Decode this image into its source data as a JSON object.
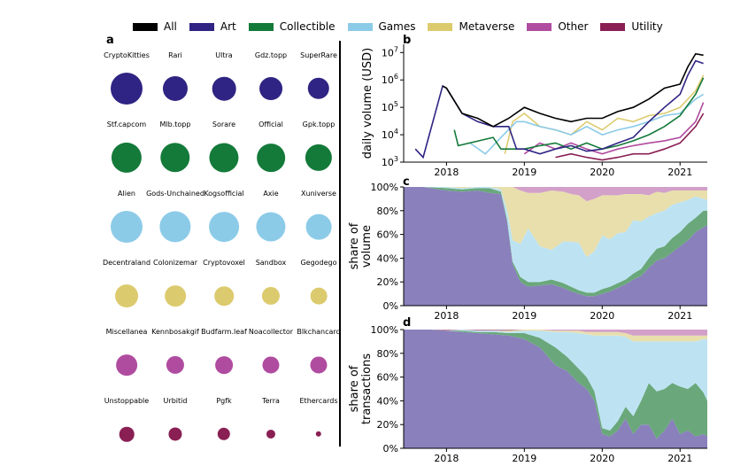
{
  "legend": [
    {
      "label": "All",
      "color": "#000000"
    },
    {
      "label": "Art",
      "color": "#2f2483"
    },
    {
      "label": "Collectible",
      "color": "#147a3a"
    },
    {
      "label": "Games",
      "color": "#8ccbe8"
    },
    {
      "label": "Metaverse",
      "color": "#dccb6e"
    },
    {
      "label": "Other",
      "color": "#b04ca0"
    },
    {
      "label": "Utility",
      "color": "#8a1f54"
    }
  ],
  "panels": {
    "a": "a",
    "b": "b",
    "c": "c",
    "d": "d"
  },
  "panel_a": {
    "rows": [
      {
        "category": "Art",
        "color": "#2f2483",
        "items": [
          {
            "name": "CryptoKitties",
            "size": 1.0
          },
          {
            "name": "Rari",
            "size": 0.78
          },
          {
            "name": "Ultra",
            "size": 0.74
          },
          {
            "name": "Gdz.topp",
            "size": 0.72
          },
          {
            "name": "SuperRare",
            "size": 0.68
          }
        ]
      },
      {
        "category": "Collectible",
        "color": "#147a3a",
        "items": [
          {
            "name": "Stf.capcom",
            "size": 0.95
          },
          {
            "name": "Mlb.topp",
            "size": 0.93
          },
          {
            "name": "Sorare",
            "size": 0.92
          },
          {
            "name": "Official",
            "size": 0.88
          },
          {
            "name": "Gpk.topp",
            "size": 0.84
          }
        ]
      },
      {
        "category": "Games",
        "color": "#8ccbe8",
        "items": [
          {
            "name": "Alien",
            "size": 1.0
          },
          {
            "name": "Gods-Unchained",
            "size": 0.98
          },
          {
            "name": "Kogsofficial",
            "size": 0.94
          },
          {
            "name": "Axie",
            "size": 0.92
          },
          {
            "name": "Xuniverse",
            "size": 0.8
          }
        ]
      },
      {
        "category": "Metaverse",
        "color": "#dccb6e",
        "items": [
          {
            "name": "Decentraland",
            "size": 0.72
          },
          {
            "name": "Colonizemar",
            "size": 0.66
          },
          {
            "name": "Cryptovoxel",
            "size": 0.6
          },
          {
            "name": "Sandbox",
            "size": 0.56
          },
          {
            "name": "Gegodego",
            "size": 0.52
          }
        ]
      },
      {
        "category": "Other",
        "color": "#b04ca0",
        "items": [
          {
            "name": "Miscellanea",
            "size": 0.66
          },
          {
            "name": "Kennbosakgif",
            "size": 0.56
          },
          {
            "name": "Budfarm.leaf",
            "size": 0.55
          },
          {
            "name": "Noacollector",
            "size": 0.53
          },
          {
            "name": "Blkchancard",
            "size": 0.53
          }
        ]
      },
      {
        "category": "Utility",
        "color": "#8a1f54",
        "items": [
          {
            "name": "Unstoppable",
            "size": 0.46
          },
          {
            "name": "Urbitid",
            "size": 0.42
          },
          {
            "name": "Pgfk",
            "size": 0.4
          },
          {
            "name": "Terra",
            "size": 0.28
          },
          {
            "name": "Ethercards",
            "size": 0.18
          }
        ]
      }
    ]
  },
  "chart_data": [
    {
      "panel": "b",
      "type": "line",
      "ylabel": "daily volume (USD)",
      "yscale": "log",
      "ylim": [
        1000,
        20000000
      ],
      "yticks": [
        "10^3",
        "10^4",
        "10^5",
        "10^6",
        "10^7"
      ],
      "xlim": [
        2017.45,
        2021.35
      ],
      "xticks": [
        "2018",
        "2019",
        "2020",
        "2021"
      ],
      "series": [
        {
          "name": "All",
          "color": "#000000",
          "x": [
            2017.95,
            2018.0,
            2018.2,
            2018.4,
            2018.6,
            2018.8,
            2019.0,
            2019.2,
            2019.4,
            2019.6,
            2019.8,
            2020.0,
            2020.2,
            2020.4,
            2020.6,
            2020.8,
            2021.0,
            2021.1,
            2021.2,
            2021.3
          ],
          "y": [
            600000,
            500000,
            60000,
            40000,
            20000,
            40000,
            100000,
            60000,
            40000,
            30000,
            40000,
            40000,
            70000,
            100000,
            200000,
            500000,
            700000,
            3000000,
            9000000,
            8000000
          ]
        },
        {
          "name": "Art",
          "color": "#2f2483",
          "x": [
            2017.6,
            2017.7,
            2017.95,
            2018.0,
            2018.2,
            2018.4,
            2018.6,
            2018.8,
            2018.9,
            2019.0,
            2019.2,
            2019.4,
            2019.6,
            2019.8,
            2020.0,
            2020.2,
            2020.4,
            2020.6,
            2020.8,
            2021.0,
            2021.1,
            2021.2,
            2021.3
          ],
          "y": [
            3000,
            1500,
            600000,
            500000,
            60000,
            30000,
            20000,
            20000,
            3000,
            3000,
            2000,
            3000,
            4000,
            2500,
            3000,
            5000,
            8000,
            30000,
            100000,
            300000,
            1500000,
            5000000,
            4000000
          ]
        },
        {
          "name": "Collectible",
          "color": "#147a3a",
          "x": [
            2018.1,
            2018.15,
            2018.6,
            2018.7,
            2019.0,
            2019.2,
            2019.4,
            2019.6,
            2019.8,
            2020.0,
            2020.2,
            2020.4,
            2020.6,
            2020.8,
            2021.0,
            2021.2,
            2021.3
          ],
          "y": [
            15000,
            4000,
            8000,
            3000,
            3000,
            4000,
            5000,
            3000,
            5000,
            3000,
            4000,
            6000,
            10000,
            20000,
            50000,
            300000,
            1200000
          ]
        },
        {
          "name": "Games",
          "color": "#8ccbe8",
          "x": [
            2018.3,
            2018.5,
            2018.7,
            2018.9,
            2019.0,
            2019.2,
            2019.4,
            2019.6,
            2019.8,
            2020.0,
            2020.2,
            2020.4,
            2020.6,
            2020.8,
            2021.0,
            2021.2,
            2021.3
          ],
          "y": [
            5000,
            2000,
            8000,
            30000,
            30000,
            20000,
            15000,
            10000,
            20000,
            10000,
            15000,
            20000,
            30000,
            50000,
            60000,
            200000,
            300000
          ]
        },
        {
          "name": "Metaverse",
          "color": "#dccb6e",
          "x": [
            2018.75,
            2018.85,
            2019.0,
            2019.2,
            2019.4,
            2019.6,
            2019.8,
            2020.0,
            2020.2,
            2020.4,
            2020.6,
            2020.8,
            2021.0,
            2021.2,
            2021.3
          ],
          "y": [
            2000,
            30000,
            60000,
            20000,
            15000,
            10000,
            30000,
            15000,
            40000,
            30000,
            50000,
            60000,
            100000,
            400000,
            1500000
          ]
        },
        {
          "name": "Other",
          "color": "#b04ca0",
          "x": [
            2019.0,
            2019.2,
            2019.4,
            2019.6,
            2019.8,
            2020.0,
            2020.2,
            2020.4,
            2020.6,
            2020.8,
            2021.0,
            2021.2,
            2021.3
          ],
          "y": [
            2000,
            5000,
            3000,
            5000,
            3000,
            2000,
            3000,
            4000,
            5000,
            6000,
            8000,
            30000,
            150000
          ]
        },
        {
          "name": "Utility",
          "color": "#8a1f54",
          "x": [
            2019.4,
            2019.6,
            2019.8,
            2020.0,
            2020.2,
            2020.4,
            2020.6,
            2020.8,
            2021.0,
            2021.2,
            2021.3
          ],
          "y": [
            1500,
            2000,
            1500,
            1200,
            1500,
            2000,
            2000,
            3000,
            5000,
            20000,
            60000
          ]
        }
      ]
    },
    {
      "panel": "c",
      "type": "area",
      "stacked": true,
      "ylabel": "share of volume",
      "yticks": [
        "0%",
        "20%",
        "40%",
        "60%",
        "80%",
        "100%"
      ],
      "xlim": [
        2017.45,
        2021.35
      ],
      "xticks": [
        "2018",
        "2019",
        "2020",
        "2021"
      ],
      "x": [
        2017.45,
        2017.7,
        2018.0,
        2018.2,
        2018.4,
        2018.55,
        2018.7,
        2018.78,
        2018.85,
        2018.95,
        2019.05,
        2019.2,
        2019.35,
        2019.5,
        2019.6,
        2019.7,
        2019.8,
        2019.9,
        2020.0,
        2020.1,
        2020.2,
        2020.3,
        2020.4,
        2020.5,
        2020.6,
        2020.7,
        2020.8,
        2020.9,
        2021.0,
        2021.1,
        2021.2,
        2021.3,
        2021.35
      ],
      "series": [
        {
          "name": "Art",
          "color": "#8a80bc",
          "values": [
            100,
            100,
            97,
            96,
            97,
            95,
            94,
            70,
            35,
            20,
            16,
            17,
            18,
            15,
            12,
            10,
            8,
            8,
            10,
            12,
            15,
            18,
            22,
            25,
            32,
            38,
            40,
            45,
            50,
            55,
            62,
            66,
            68
          ]
        },
        {
          "name": "Collectible",
          "color": "#6aa87b",
          "values": [
            0,
            0,
            2,
            2,
            2,
            4,
            2,
            2,
            2,
            4,
            4,
            3,
            4,
            4,
            4,
            3,
            3,
            3,
            4,
            4,
            4,
            4,
            5,
            6,
            8,
            10,
            10,
            12,
            12,
            14,
            12,
            14,
            12
          ]
        },
        {
          "name": "Games",
          "color": "#bde3f3",
          "values": [
            0,
            0,
            1,
            1,
            1,
            1,
            2,
            8,
            18,
            28,
            45,
            30,
            25,
            35,
            38,
            40,
            30,
            35,
            45,
            40,
            42,
            40,
            45,
            40,
            35,
            30,
            30,
            28,
            25,
            20,
            18,
            10,
            9
          ]
        },
        {
          "name": "Metaverse",
          "color": "#e8dfad",
          "values": [
            0,
            0,
            0,
            1,
            0,
            0,
            2,
            20,
            45,
            45,
            30,
            45,
            50,
            42,
            40,
            40,
            47,
            44,
            34,
            37,
            32,
            32,
            22,
            23,
            18,
            18,
            15,
            12,
            10,
            8,
            5,
            7,
            8
          ]
        },
        {
          "name": "Other",
          "color": "#d2a0c8",
          "values": [
            0,
            0,
            0,
            0,
            0,
            0,
            0,
            0,
            0,
            3,
            5,
            5,
            3,
            4,
            6,
            7,
            12,
            10,
            7,
            7,
            7,
            6,
            6,
            6,
            7,
            4,
            5,
            3,
            3,
            3,
            3,
            3,
            3
          ]
        }
      ]
    },
    {
      "panel": "d",
      "type": "area",
      "stacked": true,
      "ylabel": "share of transactions",
      "yticks": [
        "0%",
        "20%",
        "40%",
        "60%",
        "80%",
        "100%"
      ],
      "xlim": [
        2017.45,
        2021.35
      ],
      "xticks": [
        "2018",
        "2019",
        "2020",
        "2021"
      ],
      "x": [
        2017.45,
        2017.8,
        2018.0,
        2018.2,
        2018.4,
        2018.6,
        2018.8,
        2019.0,
        2019.2,
        2019.4,
        2019.55,
        2019.7,
        2019.8,
        2019.9,
        2020.0,
        2020.1,
        2020.2,
        2020.3,
        2020.4,
        2020.5,
        2020.6,
        2020.7,
        2020.8,
        2020.9,
        2021.0,
        2021.1,
        2021.2,
        2021.3,
        2021.35
      ],
      "series": [
        {
          "name": "Art",
          "color": "#8a80bc",
          "values": [
            100,
            100,
            99,
            98,
            97,
            96,
            95,
            92,
            85,
            70,
            65,
            55,
            50,
            40,
            12,
            10,
            15,
            25,
            12,
            20,
            20,
            8,
            15,
            25,
            12,
            15,
            10,
            12,
            10
          ]
        },
        {
          "name": "Collectible",
          "color": "#6aa87b",
          "values": [
            0,
            0,
            0,
            1,
            1,
            2,
            2,
            5,
            8,
            15,
            12,
            12,
            10,
            8,
            5,
            5,
            8,
            10,
            15,
            20,
            35,
            40,
            35,
            30,
            40,
            35,
            45,
            35,
            30
          ]
        },
        {
          "name": "Games",
          "color": "#bde3f3",
          "values": [
            0,
            0,
            0,
            1,
            1,
            1,
            1,
            2,
            6,
            13,
            21,
            30,
            36,
            47,
            78,
            80,
            72,
            59,
            63,
            50,
            35,
            42,
            40,
            35,
            38,
            40,
            35,
            45,
            52
          ]
        },
        {
          "name": "Metaverse",
          "color": "#e8dfad",
          "values": [
            0,
            0,
            0,
            0,
            0,
            0,
            1,
            1,
            1,
            1,
            1,
            2,
            2,
            3,
            3,
            3,
            3,
            3,
            5,
            5,
            5,
            5,
            5,
            5,
            5,
            5,
            5,
            3,
            3
          ]
        },
        {
          "name": "Other",
          "color": "#d2a0c8",
          "values": [
            0,
            0,
            0,
            0,
            0,
            0,
            0,
            0,
            0,
            1,
            1,
            1,
            2,
            2,
            2,
            2,
            2,
            3,
            5,
            5,
            5,
            5,
            5,
            5,
            5,
            5,
            5,
            5,
            5
          ]
        }
      ]
    }
  ]
}
